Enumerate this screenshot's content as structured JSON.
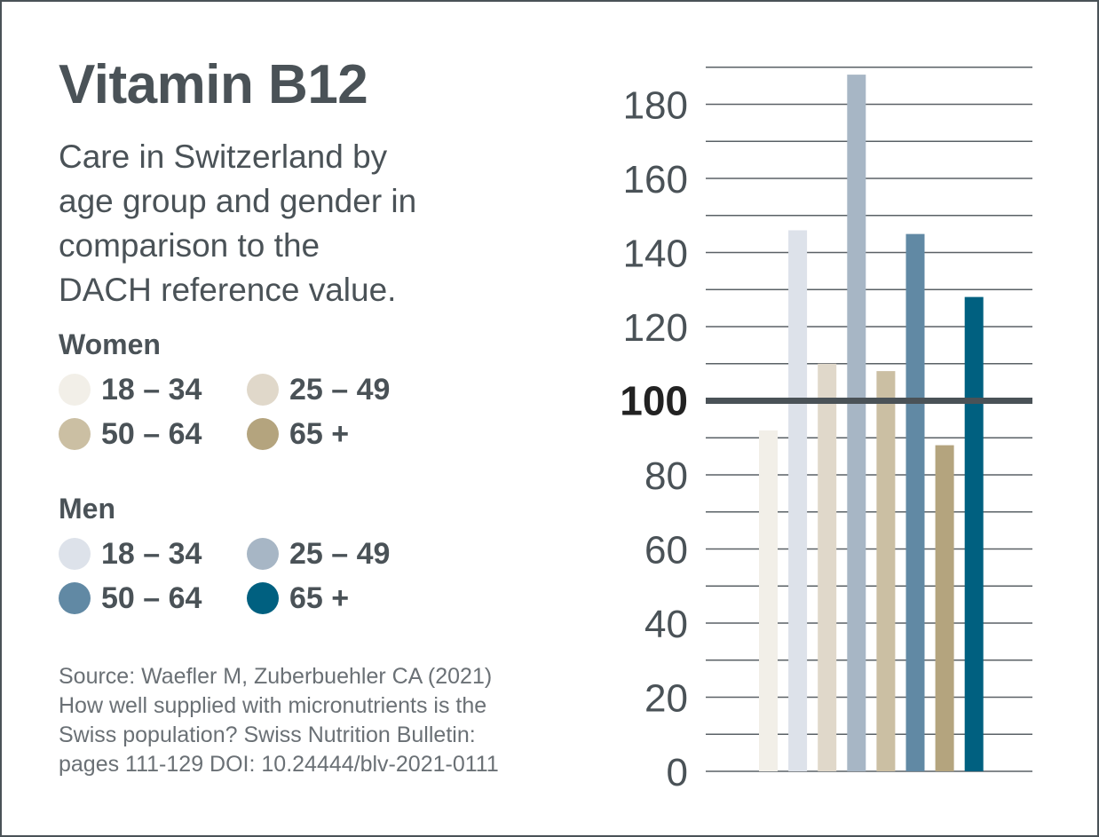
{
  "title": "Vitamin B12",
  "subtitle_lines": [
    "Care in Switzerland by",
    "age group and gender in",
    "comparison to the",
    "DACH reference value."
  ],
  "legend": {
    "women_label": "Women",
    "men_label": "Men",
    "women": [
      {
        "label": "18 – 34",
        "color": "#f2efe8"
      },
      {
        "label": "25 – 49",
        "color": "#e0d8ca"
      },
      {
        "label": "50 – 64",
        "color": "#cbbfa3"
      },
      {
        "label": "65 +",
        "color": "#b4a47e"
      }
    ],
    "men": [
      {
        "label": "18 – 34",
        "color": "#dde2ea"
      },
      {
        "label": "25 – 49",
        "color": "#a7b6c5"
      },
      {
        "label": "50 – 64",
        "color": "#6189a4"
      },
      {
        "label": "65 +",
        "color": "#006080"
      }
    ]
  },
  "source_lines": [
    "Source: Waefler M, Zuberbuehler CA (2021)",
    "How well supplied with micronutrients is the",
    "Swiss population? Swiss Nutrition Bulletin:",
    "pages 111-129 DOI: 10.24444/blv-2021-0111"
  ],
  "chart_data": {
    "type": "bar",
    "title": "Vitamin B12",
    "xlabel": "",
    "ylabel": "",
    "ylim": [
      0,
      190
    ],
    "yticks": [
      0,
      20,
      40,
      60,
      80,
      100,
      120,
      140,
      160,
      180
    ],
    "reference_value": 100,
    "grid": true,
    "legend_position": "left",
    "categories": [
      "Women 18 – 34",
      "Men 18 – 34",
      "Women 25 – 49",
      "Men 25 – 49",
      "Women 50 – 64",
      "Men 50 – 64",
      "Women 65 +",
      "Men 65 +"
    ],
    "values": [
      92,
      146,
      110,
      188,
      108,
      145,
      88,
      128
    ],
    "colors": [
      "#f2efe8",
      "#dde2ea",
      "#e0d8ca",
      "#a7b6c5",
      "#cbbfa3",
      "#6189a4",
      "#b4a47e",
      "#006080"
    ]
  }
}
